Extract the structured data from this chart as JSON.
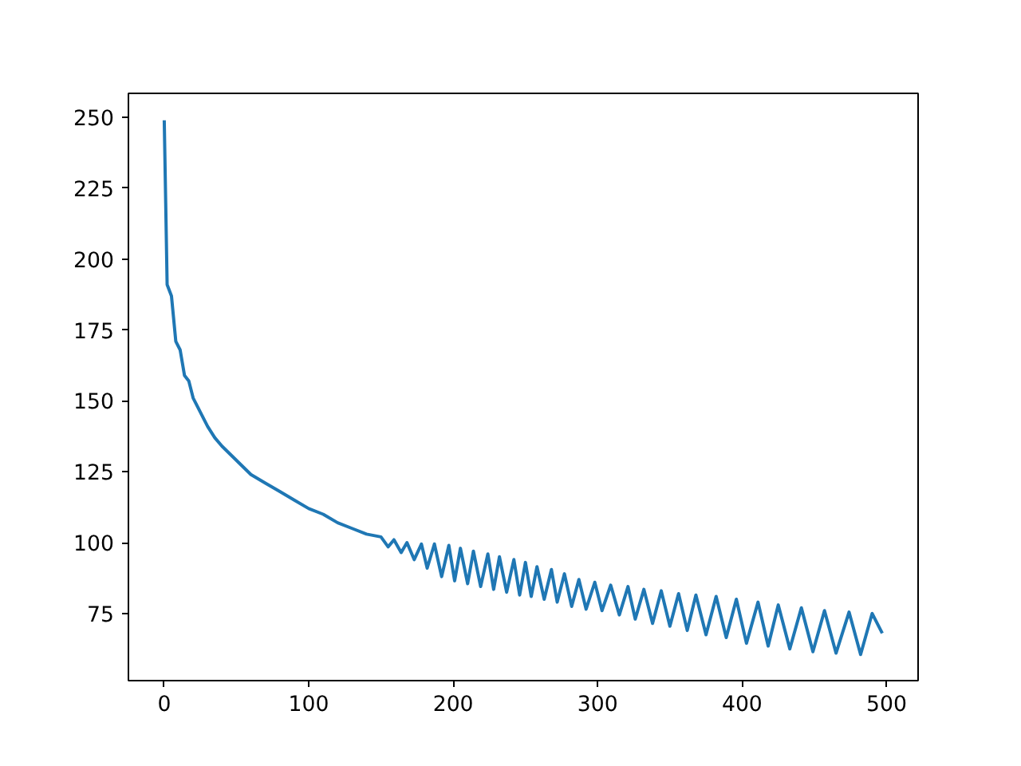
{
  "chart_data": {
    "type": "line",
    "xlim": [
      -24.8,
      521.8
    ],
    "ylim": [
      51.3,
      258.5
    ],
    "xticks": [
      0,
      100,
      200,
      300,
      400,
      500
    ],
    "yticks": [
      75,
      100,
      125,
      150,
      175,
      200,
      225,
      250
    ],
    "grid": false,
    "marker": "none",
    "line_style": "solid",
    "series": [
      {
        "color": "#1f77b4",
        "x": [
          0,
          2,
          5,
          8,
          11,
          14,
          17,
          20,
          25,
          30,
          35,
          40,
          50,
          60,
          70,
          80,
          90,
          100,
          110,
          120,
          130,
          140,
          150,
          155,
          159,
          164,
          168,
          173,
          178,
          182,
          187,
          192,
          197,
          201,
          205,
          210,
          214,
          219,
          224,
          228,
          232,
          237,
          242,
          246,
          250,
          254,
          258,
          263,
          268,
          272,
          277,
          282,
          287,
          292,
          298,
          303,
          309,
          315,
          321,
          326,
          332,
          338,
          344,
          350,
          356,
          362,
          368,
          375,
          382,
          389,
          396,
          403,
          411,
          418,
          425,
          433,
          441,
          449,
          457,
          465,
          474,
          482,
          490,
          497
        ],
        "values": [
          249,
          191,
          187,
          171,
          168,
          159,
          157,
          151,
          146,
          141,
          137,
          134,
          129,
          124,
          121,
          118,
          115,
          112,
          110,
          107,
          105,
          103,
          102,
          98.5,
          101,
          96.5,
          100,
          94,
          99.5,
          91,
          99.5,
          88,
          99,
          86.5,
          98,
          85.5,
          97,
          84.5,
          96,
          83.5,
          95,
          82.5,
          94,
          81.5,
          93,
          81,
          91.5,
          80,
          90.5,
          79,
          89,
          77.5,
          87,
          76.5,
          86,
          76,
          85,
          74.5,
          84.5,
          73,
          83.5,
          71.5,
          83,
          70.5,
          82,
          69,
          81.5,
          67.5,
          81,
          66.5,
          80,
          64.5,
          79,
          63.5,
          78,
          62.5,
          77,
          61.5,
          76,
          61,
          75.5,
          60.5,
          75,
          68
        ]
      }
    ]
  }
}
